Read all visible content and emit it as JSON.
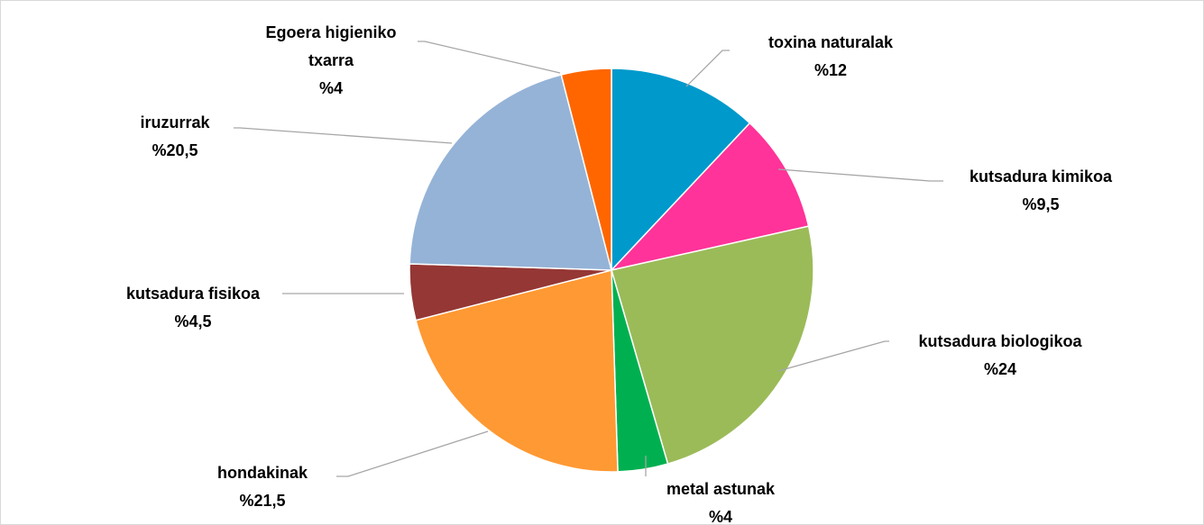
{
  "chart_data": {
    "type": "pie",
    "title": "",
    "start_angle_deg": 0,
    "direction": "clockwise",
    "slices": [
      {
        "name": "toxina naturalak",
        "value": 12,
        "label_lines": [
          "toxina naturalak",
          "%12"
        ],
        "color": "#0099cc"
      },
      {
        "name": "kutsadura kimikoa",
        "value": 9.5,
        "label_lines": [
          "kutsadura kimikoa",
          "%9,5"
        ],
        "color": "#ff3399"
      },
      {
        "name": "kutsadura biologikoa",
        "value": 24,
        "label_lines": [
          "kutsadura biologikoa",
          "%24"
        ],
        "color": "#9bbb59"
      },
      {
        "name": "metal astunak",
        "value": 4,
        "label_lines": [
          "metal astunak",
          "%4"
        ],
        "color": "#00b050"
      },
      {
        "name": "hondakinak",
        "value": 21.5,
        "label_lines": [
          "hondakinak",
          "%21,5"
        ],
        "color": "#ff9933"
      },
      {
        "name": "kutsadura fisikoa",
        "value": 4.5,
        "label_lines": [
          "kutsadura fisikoa",
          "%4,5"
        ],
        "color": "#953735"
      },
      {
        "name": "iruzurrak",
        "value": 20.5,
        "label_lines": [
          "iruzurrak",
          "%20,5"
        ],
        "color": "#95b3d7"
      },
      {
        "name": "Egoera higieniko txarra",
        "value": 4,
        "label_lines": [
          "Egoera higieniko",
          "txarra",
          "%4"
        ],
        "color": "#ff6600"
      }
    ]
  }
}
